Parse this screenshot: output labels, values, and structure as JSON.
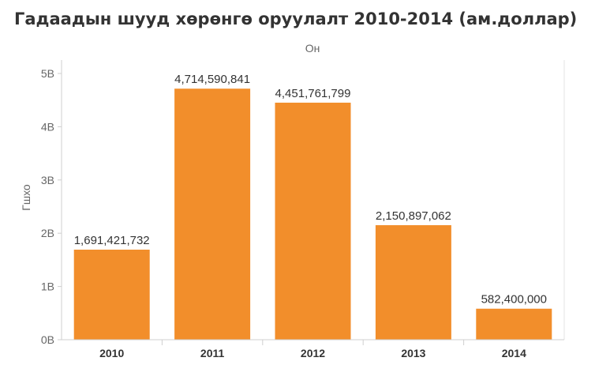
{
  "chart_data": {
    "type": "bar",
    "title": "Гадаадын шууд хөрөнгө оруулалт 2010-2014 (ам.доллар)",
    "header_label": "Он",
    "ylabel": "Гшхо",
    "xlabel": "",
    "categories": [
      "2010",
      "2011",
      "2012",
      "2013",
      "2014"
    ],
    "values": [
      1691421732,
      4714590841,
      4451761799,
      2150897062,
      582400000
    ],
    "data_labels": [
      "1,691,421,732",
      "4,714,590,841",
      "4,451,761,799",
      "2,150,897,062",
      "582,400,000"
    ],
    "ylim": [
      0,
      5000000000
    ],
    "yticks": [
      {
        "value": 0,
        "label": "0B"
      },
      {
        "value": 1000000000,
        "label": "1B"
      },
      {
        "value": 2000000000,
        "label": "2B"
      },
      {
        "value": 3000000000,
        "label": "3B"
      },
      {
        "value": 4000000000,
        "label": "4B"
      },
      {
        "value": 5000000000,
        "label": "5B"
      }
    ],
    "bar_color": "#f28e2b",
    "grid": false
  }
}
